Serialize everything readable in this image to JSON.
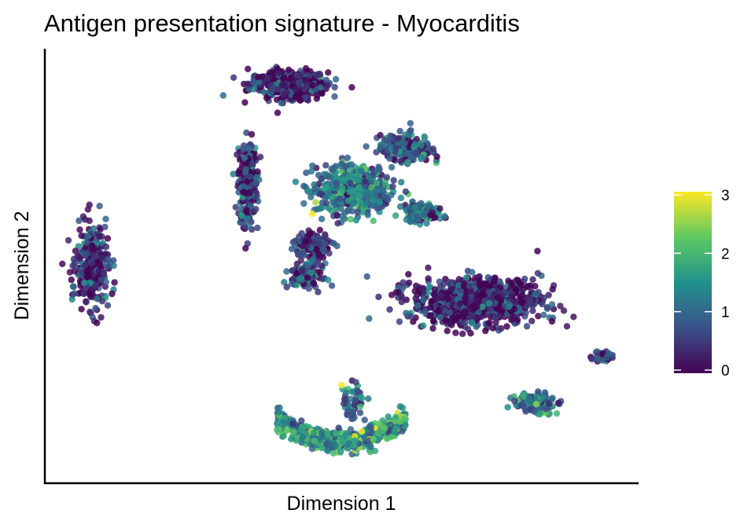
{
  "chart_data": {
    "type": "scatter",
    "title": "Antigen presentation signature - Myocarditis",
    "xlabel": "Dimension 1",
    "ylabel": "Dimension 2",
    "xlim": [
      0,
      100
    ],
    "ylim": [
      0,
      100
    ],
    "axis_ticks": false,
    "grid": false,
    "color_scale": {
      "name": "viridis",
      "range": [
        0,
        3
      ],
      "ticks": [
        0,
        1,
        2,
        3
      ],
      "stops": [
        "#440154",
        "#3b528b",
        "#21918c",
        "#5ec962",
        "#fde725"
      ],
      "legend_position": "right"
    },
    "clusters": [
      {
        "label": "top-center arc",
        "center": [
          41,
          93
        ],
        "spread": [
          6,
          3
        ],
        "n": 430,
        "mean_value": 0.25
      },
      {
        "label": "left stem",
        "center": [
          34,
          70
        ],
        "spread": [
          1.5,
          9
        ],
        "n": 260,
        "mean_value": 0.4
      },
      {
        "label": "left isolated",
        "center": [
          7.5,
          50
        ],
        "spread": [
          2.5,
          9
        ],
        "n": 300,
        "mean_value": 0.35
      },
      {
        "label": "upper-middle",
        "center": [
          52,
          68
        ],
        "spread": [
          6,
          5
        ],
        "n": 520,
        "mean_value": 1.15
      },
      {
        "label": "upper-right arm",
        "center": [
          61,
          78
        ],
        "spread": [
          4,
          3
        ],
        "n": 200,
        "mean_value": 0.9
      },
      {
        "label": "middle-right arm",
        "center": [
          64,
          63
        ],
        "spread": [
          3,
          1.8
        ],
        "n": 150,
        "mean_value": 0.95
      },
      {
        "label": "middle bridge",
        "center": [
          45,
          55
        ],
        "spread": [
          3,
          2.5
        ],
        "n": 130,
        "mean_value": 0.4
      },
      {
        "label": "middle lower",
        "center": [
          44,
          48
        ],
        "spread": [
          2.5,
          2.5
        ],
        "n": 120,
        "mean_value": 0.55
      },
      {
        "label": "large right",
        "center": [
          73,
          42
        ],
        "spread": [
          10,
          5
        ],
        "n": 900,
        "mean_value": 0.3
      },
      {
        "label": "bottom crescent",
        "center": [
          50,
          9
        ],
        "spread": [
          11,
          3
        ],
        "n": 600,
        "mean_value": 1.6
      },
      {
        "label": "bottom stalk",
        "center": [
          52,
          18
        ],
        "spread": [
          2,
          4
        ],
        "n": 50,
        "mean_value": 1.0
      },
      {
        "label": "right small",
        "center": [
          83,
          18
        ],
        "spread": [
          3,
          2
        ],
        "n": 160,
        "mean_value": 1.05
      },
      {
        "label": "far right tiny",
        "center": [
          94.5,
          29
        ],
        "spread": [
          1.5,
          1
        ],
        "n": 40,
        "mean_value": 0.4
      }
    ]
  }
}
